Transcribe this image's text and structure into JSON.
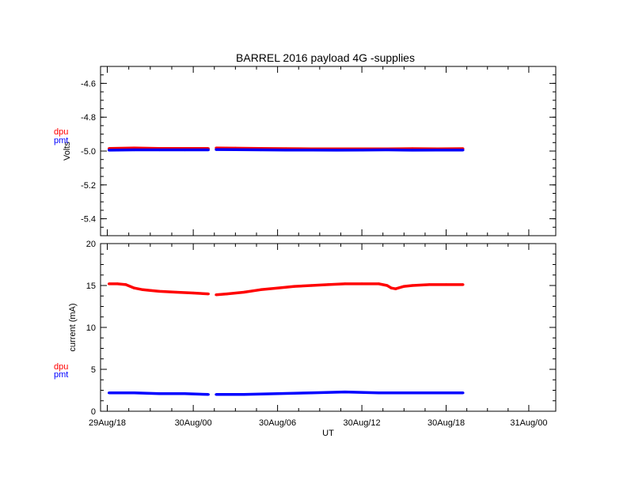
{
  "colors": {
    "dpu": "#ff0000",
    "pmt": "#0000ff",
    "axis": "#000000",
    "background": "#ffffff"
  },
  "chart_data": [
    {
      "type": "line",
      "title": "BARREL 2016 payload 4G -supplies",
      "ylabel": "Volts",
      "xlabel": "",
      "x_unit": "hours since 29Aug/18 UT",
      "xlim": [
        -1,
        53
      ],
      "ylim": [
        -5.5,
        -4.5
      ],
      "y_ticks": [
        -4.6,
        -4.8,
        -5.0,
        -5.2,
        -5.4
      ],
      "y_tick_labels": [
        "-4.6",
        "-4.8",
        "-5.0",
        "-5.2",
        "-5.4"
      ],
      "grid": false,
      "legend": [
        {
          "name": "dpu",
          "color": "#ff0000"
        },
        {
          "name": "pmt",
          "color": "#0000ff"
        }
      ],
      "series": [
        {
          "name": "dpu",
          "segments": [
            {
              "x": [
                0,
                3,
                6,
                9,
                11.8
              ],
              "y": [
                -4.985,
                -4.982,
                -4.985,
                -4.985,
                -4.985
              ]
            },
            {
              "x": [
                12.7,
                15,
                18,
                21,
                24,
                27,
                30,
                33,
                36,
                39,
                42
              ],
              "y": [
                -4.982,
                -4.983,
                -4.985,
                -4.986,
                -4.987,
                -4.987,
                -4.987,
                -4.987,
                -4.986,
                -4.987,
                -4.986
              ]
            }
          ]
        },
        {
          "name": "pmt",
          "segments": [
            {
              "x": [
                0,
                3,
                6,
                9,
                11.8
              ],
              "y": [
                -4.995,
                -4.993,
                -4.993,
                -4.993,
                -4.993
              ]
            },
            {
              "x": [
                12.7,
                15,
                18,
                21,
                24,
                27,
                30,
                33,
                36,
                39,
                42
              ],
              "y": [
                -4.991,
                -4.992,
                -4.993,
                -4.994,
                -4.994,
                -4.995,
                -4.994,
                -4.993,
                -4.995,
                -4.994,
                -4.994
              ]
            }
          ]
        }
      ]
    },
    {
      "type": "line",
      "title": "",
      "ylabel": "current (mA)",
      "xlabel": "UT",
      "x_unit": "hours since 29Aug/18 UT",
      "xlim": [
        -1,
        53
      ],
      "ylim": [
        0,
        20
      ],
      "y_ticks": [
        0,
        5,
        10,
        15,
        20
      ],
      "y_tick_labels": [
        "0",
        "5",
        "10",
        "15",
        "20"
      ],
      "x_ticks": [
        -0.2,
        10,
        20,
        30,
        40,
        49.8
      ],
      "x_tick_labels": [
        "29Aug/18",
        "30Aug/00",
        "30Aug/06",
        "30Aug/12",
        "30Aug/18",
        "31Aug/00"
      ],
      "grid": false,
      "legend": [
        {
          "name": "dpu",
          "color": "#ff0000"
        },
        {
          "name": "pmt",
          "color": "#0000ff"
        }
      ],
      "series": [
        {
          "name": "dpu",
          "segments": [
            {
              "x": [
                0,
                1,
                2,
                3,
                4,
                5,
                6,
                8,
                10,
                11.8
              ],
              "y": [
                15.2,
                15.2,
                15.1,
                14.7,
                14.5,
                14.4,
                14.3,
                14.2,
                14.1,
                14.0
              ]
            },
            {
              "x": [
                12.7,
                14,
                16,
                18,
                20,
                22,
                24,
                26,
                28,
                30,
                32,
                33,
                33.5,
                34,
                35,
                36,
                38,
                40,
                42
              ],
              "y": [
                13.9,
                14.0,
                14.2,
                14.5,
                14.7,
                14.9,
                15.0,
                15.1,
                15.2,
                15.2,
                15.2,
                15.0,
                14.7,
                14.6,
                14.9,
                15.0,
                15.1,
                15.1,
                15.1
              ]
            }
          ]
        },
        {
          "name": "pmt",
          "segments": [
            {
              "x": [
                0,
                3,
                6,
                9,
                11.8
              ],
              "y": [
                2.2,
                2.2,
                2.1,
                2.1,
                2.0
              ]
            },
            {
              "x": [
                12.7,
                16,
                20,
                24,
                28,
                32,
                36,
                40,
                42
              ],
              "y": [
                2.0,
                2.0,
                2.1,
                2.2,
                2.3,
                2.2,
                2.2,
                2.2,
                2.2
              ]
            }
          ]
        }
      ]
    }
  ]
}
